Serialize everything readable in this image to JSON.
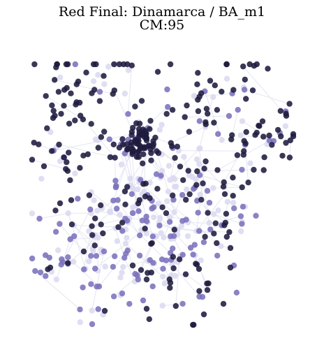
{
  "figure": {
    "title": "Red Final: Dinamarca / BA_m1",
    "subtitle": "CM:95"
  },
  "network": {
    "type": "network-graph",
    "node_colors": {
      "dark": "#1e1b3f",
      "medium": "#7b72bd",
      "light": "#dcdaf0"
    },
    "edge_color": "#e6e5f3",
    "node_opacity": 0.88
  }
}
